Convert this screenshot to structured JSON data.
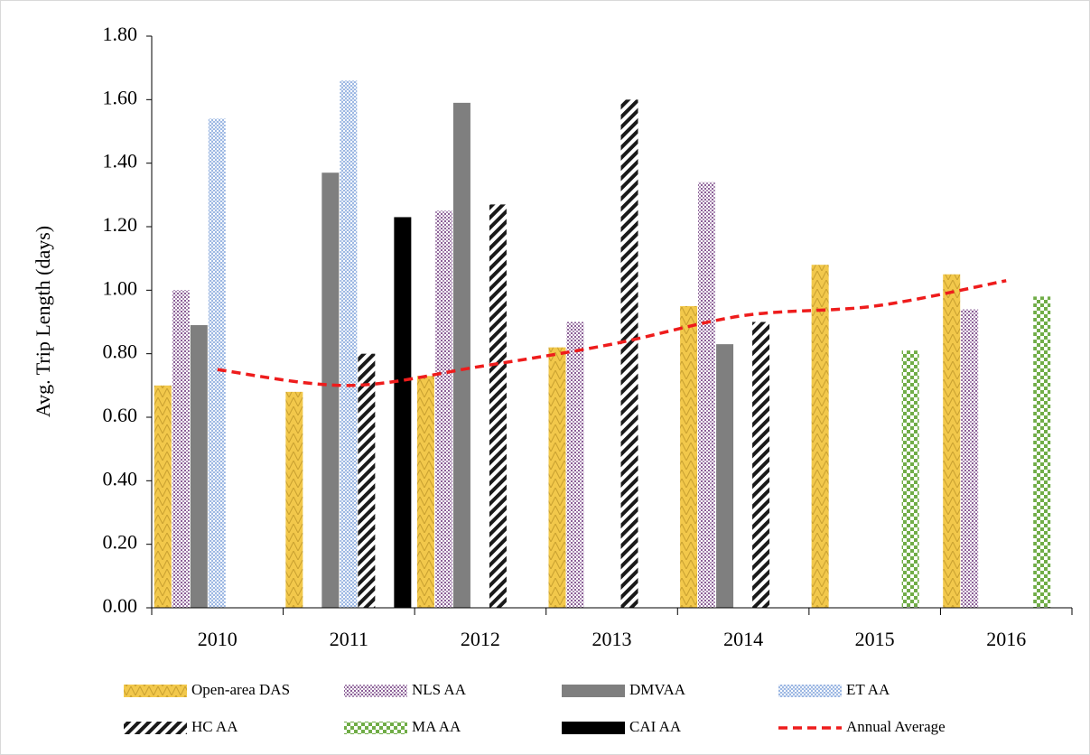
{
  "chart_data": {
    "type": "bar",
    "y_label": "Avg. Trip Length (days)",
    "categories": [
      "2010",
      "2011",
      "2012",
      "2013",
      "2014",
      "2015",
      "2016"
    ],
    "series": [
      {
        "name": "Open-area DAS",
        "color": "#f2c84b",
        "values": [
          0.7,
          0.68,
          0.73,
          0.82,
          0.95,
          1.08,
          1.05
        ]
      },
      {
        "name": "NLS AA",
        "color": "#8a5e96",
        "values": [
          1.0,
          null,
          1.25,
          0.9,
          1.34,
          null,
          0.94
        ]
      },
      {
        "name": "DMVAA",
        "color": "#7f7f7f",
        "values": [
          0.89,
          1.37,
          1.59,
          null,
          0.83,
          null,
          null
        ]
      },
      {
        "name": "ET AA",
        "color": "#9db8e3",
        "values": [
          1.54,
          1.66,
          null,
          null,
          null,
          null,
          null
        ]
      },
      {
        "name": "HC AA",
        "color": "#1a1a1a",
        "values": [
          null,
          0.8,
          1.27,
          1.6,
          0.9,
          null,
          null
        ]
      },
      {
        "name": "MA AA",
        "color": "#70ad47",
        "values": [
          null,
          null,
          null,
          null,
          null,
          0.81,
          0.98
        ]
      },
      {
        "name": "CAI AA",
        "color": "#000000",
        "values": [
          null,
          1.23,
          null,
          null,
          null,
          null,
          null
        ]
      },
      {
        "name": "Annual Average",
        "type": "line",
        "color": "#ee1c1c",
        "values": [
          0.75,
          0.7,
          0.76,
          0.83,
          0.92,
          0.95,
          1.03
        ]
      }
    ],
    "ylim": [
      0,
      1.8
    ],
    "yticks": [
      {
        "value": 0,
        "label": "0.00"
      },
      {
        "value": 0.2,
        "label": "0.20"
      },
      {
        "value": 0.4,
        "label": "0.40"
      },
      {
        "value": 0.6,
        "label": "0.60"
      },
      {
        "value": 0.8,
        "label": "0.80"
      },
      {
        "value": 1.0,
        "label": "1.00"
      },
      {
        "value": 1.2,
        "label": "1.20"
      },
      {
        "value": 1.4,
        "label": "1.40"
      },
      {
        "value": 1.6,
        "label": "1.60"
      },
      {
        "value": 1.8,
        "label": "1.80"
      }
    ],
    "grid": false
  }
}
